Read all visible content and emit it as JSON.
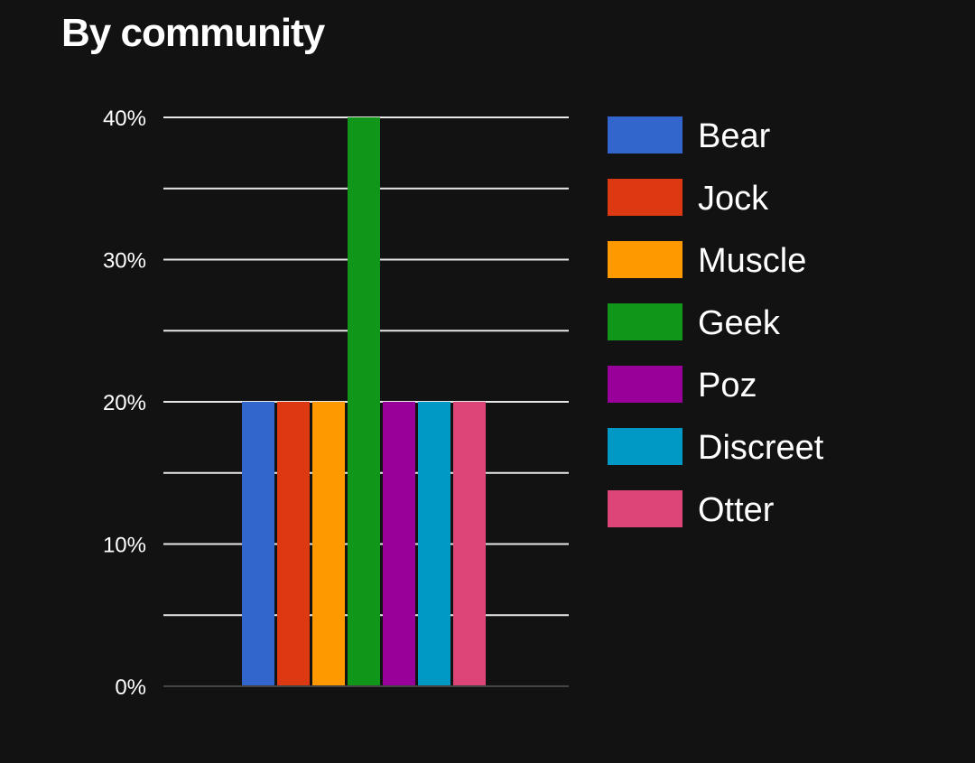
{
  "chart_data": {
    "type": "bar",
    "title": "By community",
    "categories": [
      "Bear",
      "Jock",
      "Muscle",
      "Geek",
      "Poz",
      "Discreet",
      "Otter"
    ],
    "values": [
      20,
      20,
      20,
      40,
      20,
      20,
      20
    ],
    "colors": [
      "#3366cc",
      "#dc3912",
      "#ff9900",
      "#109618",
      "#990099",
      "#0099c6",
      "#dd4477"
    ],
    "ylim": [
      0,
      40
    ],
    "y_tick_labels": [
      "0%",
      "10%",
      "20%",
      "30%",
      "40%"
    ],
    "grid": true,
    "legend": "right"
  }
}
